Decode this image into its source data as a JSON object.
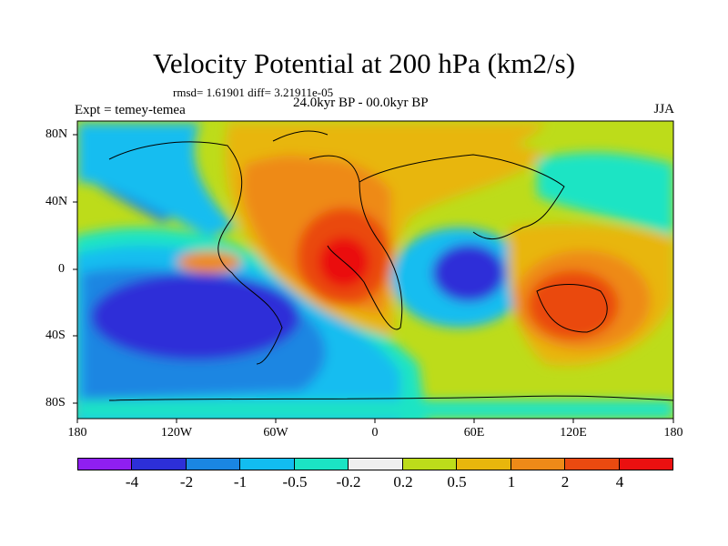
{
  "title": "Velocity Potential at 200 hPa (km2/s)",
  "stats_line": "rmsd= 1.61901 diff= 3.21911e-05",
  "left_label": "Expt = temey-temea",
  "center_label": "24.0kyr BP - 00.0kyr BP",
  "right_label": "JJA",
  "lon_labels": [
    "180",
    "120W",
    "60W",
    "0",
    "60E",
    "120E",
    "180"
  ],
  "lat_labels": [
    "80N",
    "40N",
    "0",
    "40S",
    "80S"
  ],
  "colorbar": {
    "colors": [
      "#8f1ff0",
      "#2d2fd8",
      "#1a86e2",
      "#12bdf0",
      "#1be4c4",
      "#efefef",
      "#bddc1a",
      "#e8b60c",
      "#ee8a18",
      "#ea4a10",
      "#ea1010"
    ],
    "labels": [
      "-4",
      "-2",
      "-1",
      "-0.5",
      "-0.2",
      "0.2",
      "0.5",
      "1",
      "2",
      "4"
    ]
  }
}
